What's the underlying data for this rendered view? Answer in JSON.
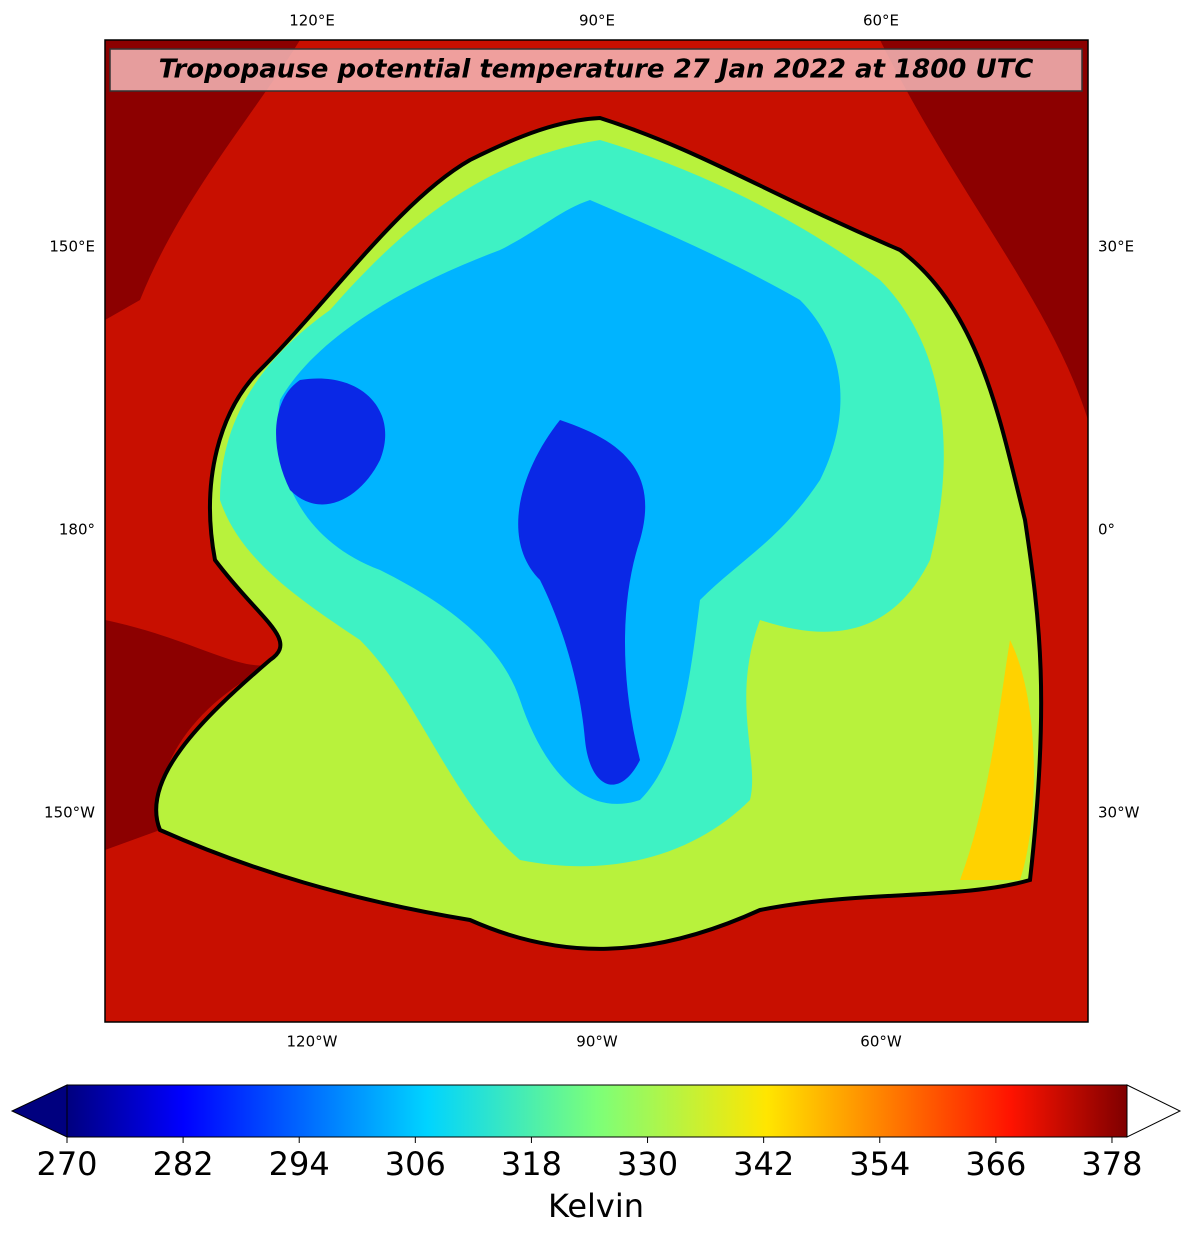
{
  "title": "Tropopause potential temperature 27 Jan 2022 at 1800 UTC",
  "map": {
    "top_labels": [
      "120°E",
      "90°E",
      "60°E"
    ],
    "left_labels": [
      "150°E",
      "180°",
      "150°W"
    ],
    "right_labels": [
      "30°E",
      "0°",
      "30°W"
    ],
    "bottom_labels": [
      "120°W",
      "90°W",
      "60°W"
    ]
  },
  "colorbar": {
    "label": "Kelvin",
    "lim": [
      270,
      381
    ],
    "ticks": [
      270,
      282,
      294,
      306,
      318,
      330,
      342,
      354,
      366,
      378
    ]
  }
}
